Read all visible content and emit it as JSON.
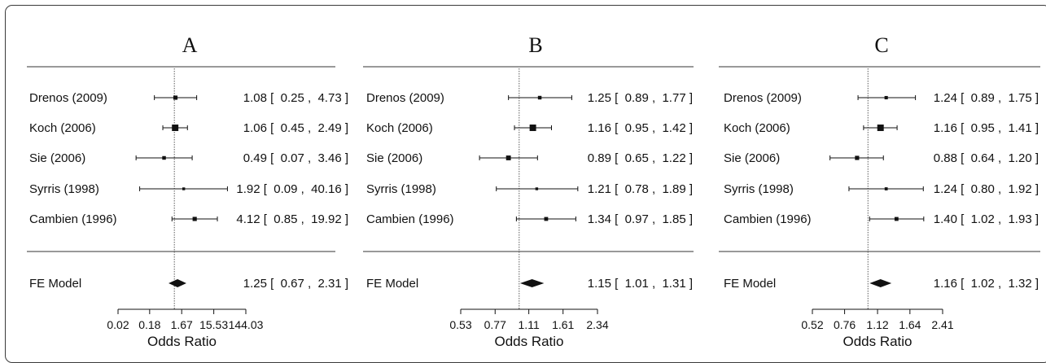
{
  "chart_data": [
    {
      "type": "forest",
      "title": "A",
      "xlabel": "Odds Ratio",
      "x_scale": "log",
      "tick_labels": [
        "0.02",
        "0.18",
        "1.67",
        "15.53",
        "144.03"
      ],
      "tick_values": [
        0.02,
        0.18,
        1.67,
        15.53,
        144.03
      ],
      "studies": [
        {
          "label": "Drenos (2009)",
          "or": 1.08,
          "lo": 0.25,
          "hi": 4.73,
          "ci_text": "1.08 [  0.25 ,  4.73 ]",
          "weight": 0.45
        },
        {
          "label": "Koch (2006)",
          "or": 1.06,
          "lo": 0.45,
          "hi": 2.49,
          "ci_text": "1.06 [  0.45 ,  2.49 ]",
          "weight": 0.85
        },
        {
          "label": "Sie (2006)",
          "or": 0.49,
          "lo": 0.07,
          "hi": 3.46,
          "ci_text": "0.49 [  0.07 ,  3.46 ]",
          "weight": 0.35
        },
        {
          "label": "Syrris (1998)",
          "or": 1.92,
          "lo": 0.09,
          "hi": 40.16,
          "ci_text": "1.92 [  0.09 ,  40.16 ]",
          "weight": 0.2
        },
        {
          "label": "Cambien (1996)",
          "or": 4.12,
          "lo": 0.85,
          "hi": 19.92,
          "ci_text": "4.12 [  0.85 ,  19.92 ]",
          "weight": 0.45
        }
      ],
      "summary": {
        "label": "FE Model",
        "or": 1.25,
        "lo": 0.67,
        "hi": 2.31,
        "ci_text": "1.25 [  0.67 ,  2.31 ]"
      },
      "reference_line": 1
    },
    {
      "type": "forest",
      "title": "B",
      "xlabel": "Odds Ratio",
      "x_scale": "log",
      "tick_labels": [
        "0.53",
        "0.77",
        "1.11",
        "1.61",
        "2.34"
      ],
      "tick_values": [
        0.53,
        0.77,
        1.11,
        1.61,
        2.34
      ],
      "studies": [
        {
          "label": "Drenos (2009)",
          "or": 1.25,
          "lo": 0.89,
          "hi": 1.77,
          "ci_text": "1.25 [  0.89 ,  1.77 ]",
          "weight": 0.35
        },
        {
          "label": "Koch (2006)",
          "or": 1.16,
          "lo": 0.95,
          "hi": 1.42,
          "ci_text": "1.16 [  0.95 ,  1.42 ]",
          "weight": 0.85
        },
        {
          "label": "Sie (2006)",
          "or": 0.89,
          "lo": 0.65,
          "hi": 1.22,
          "ci_text": "0.89 [  0.65 ,  1.22 ]",
          "weight": 0.55
        },
        {
          "label": "Syrris (1998)",
          "or": 1.21,
          "lo": 0.78,
          "hi": 1.89,
          "ci_text": "1.21 [  0.78 ,  1.89 ]",
          "weight": 0.2
        },
        {
          "label": "Cambien (1996)",
          "or": 1.34,
          "lo": 0.97,
          "hi": 1.85,
          "ci_text": "1.34 [  0.97 ,  1.85 ]",
          "weight": 0.4
        }
      ],
      "summary": {
        "label": "FE Model",
        "or": 1.15,
        "lo": 1.01,
        "hi": 1.31,
        "ci_text": "1.15 [  1.01 ,  1.31 ]"
      },
      "reference_line": 1
    },
    {
      "type": "forest",
      "title": "C",
      "xlabel": "Odds Ratio",
      "x_scale": "log",
      "tick_labels": [
        "0.52",
        "0.76",
        "1.12",
        "1.64",
        "2.41"
      ],
      "tick_values": [
        0.52,
        0.76,
        1.12,
        1.64,
        2.41
      ],
      "studies": [
        {
          "label": "Drenos (2009)",
          "or": 1.24,
          "lo": 0.89,
          "hi": 1.75,
          "ci_text": "1.24 [  0.89 ,  1.75 ]",
          "weight": 0.3
        },
        {
          "label": "Koch (2006)",
          "or": 1.16,
          "lo": 0.95,
          "hi": 1.41,
          "ci_text": "1.16 [  0.95 ,  1.41 ]",
          "weight": 0.85
        },
        {
          "label": "Sie (2006)",
          "or": 0.88,
          "lo": 0.64,
          "hi": 1.2,
          "ci_text": "0.88 [  0.64 ,  1.20 ]",
          "weight": 0.45
        },
        {
          "label": "Syrris (1998)",
          "or": 1.24,
          "lo": 0.8,
          "hi": 1.92,
          "ci_text": "1.24 [  0.80 ,  1.92 ]",
          "weight": 0.25
        },
        {
          "label": "Cambien (1996)",
          "or": 1.4,
          "lo": 1.02,
          "hi": 1.93,
          "ci_text": "1.40 [  1.02 ,  1.93 ]",
          "weight": 0.4
        }
      ],
      "summary": {
        "label": "FE Model",
        "or": 1.16,
        "lo": 1.02,
        "hi": 1.32,
        "ci_text": "1.16 [  1.02 ,  1.32 ]"
      },
      "reference_line": 1
    }
  ]
}
